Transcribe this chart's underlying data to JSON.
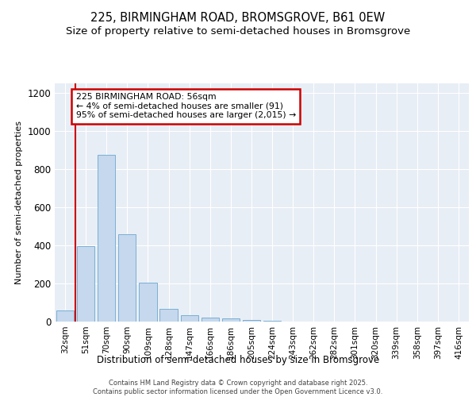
{
  "title": "225, BIRMINGHAM ROAD, BROMSGROVE, B61 0EW",
  "subtitle": "Size of property relative to semi-detached houses in Bromsgrove",
  "xlabel": "Distribution of semi-detached houses by size in Bromsgrove",
  "ylabel": "Number of semi-detached properties",
  "categories": [
    "32sqm",
    "51sqm",
    "70sqm",
    "90sqm",
    "109sqm",
    "128sqm",
    "147sqm",
    "166sqm",
    "186sqm",
    "205sqm",
    "224sqm",
    "243sqm",
    "262sqm",
    "282sqm",
    "301sqm",
    "320sqm",
    "339sqm",
    "358sqm",
    "397sqm",
    "416sqm"
  ],
  "values": [
    60,
    395,
    875,
    460,
    205,
    65,
    35,
    22,
    15,
    10,
    5,
    2,
    1,
    0,
    0,
    0,
    0,
    0,
    0,
    0
  ],
  "bar_color": "#c5d8ed",
  "bar_edge_color": "#7aafd4",
  "vline_color": "#cc0000",
  "annotation_text": "225 BIRMINGHAM ROAD: 56sqm\n← 4% of semi-detached houses are smaller (91)\n95% of semi-detached houses are larger (2,015) →",
  "annotation_box_color": "#cc0000",
  "ylim": [
    0,
    1250
  ],
  "yticks": [
    0,
    200,
    400,
    600,
    800,
    1000,
    1200
  ],
  "background_color": "#e8eef5",
  "footer_text": "Contains HM Land Registry data © Crown copyright and database right 2025.\nContains public sector information licensed under the Open Government Licence v3.0.",
  "title_fontsize": 10.5,
  "subtitle_fontsize": 9.5
}
